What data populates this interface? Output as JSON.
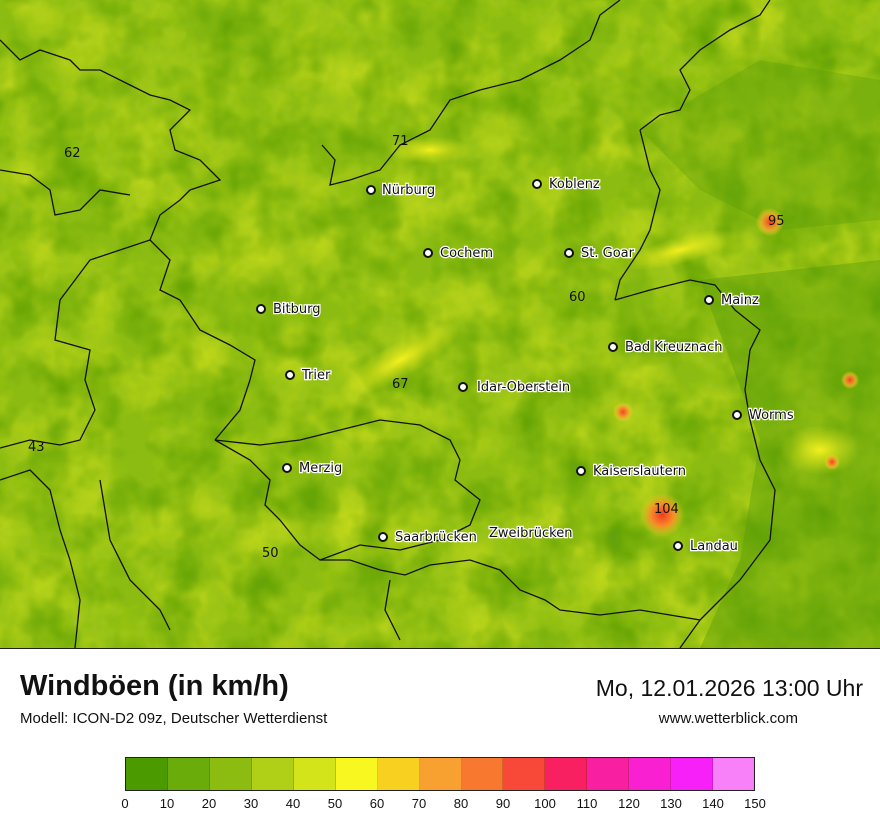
{
  "header": {
    "title": "Windböen (in km/h)",
    "model": "Modell: ICON-D2 09z, Deutscher Wetterdienst",
    "datetime": "Mo, 12.01.2026 13:00 Uhr",
    "website": "www.wetterblick.com"
  },
  "cities": [
    {
      "name": "Nürburg"
    },
    {
      "name": "Koblenz"
    },
    {
      "name": "Cochem"
    },
    {
      "name": "St. Goar"
    },
    {
      "name": "Mainz"
    },
    {
      "name": "Bitburg"
    },
    {
      "name": "Bad Kreuznach"
    },
    {
      "name": "Trier"
    },
    {
      "name": "Idar-Oberstein"
    },
    {
      "name": "Worms"
    },
    {
      "name": "Merzig"
    },
    {
      "name": "Kaiserslautern"
    },
    {
      "name": "Saarbrücken"
    },
    {
      "name": "Zweibrücken"
    },
    {
      "name": "Landau"
    }
  ],
  "values": [
    "62",
    "71",
    "95",
    "60",
    "67",
    "43",
    "104",
    "50"
  ],
  "legend": {
    "ticks": [
      "0",
      "10",
      "20",
      "30",
      "40",
      "50",
      "60",
      "70",
      "80",
      "90",
      "100",
      "110",
      "120",
      "130",
      "140",
      "150"
    ],
    "colors": [
      "#4a9a00",
      "#6aac0a",
      "#8cbc10",
      "#b0d018",
      "#d4e41a",
      "#f8f820",
      "#f8d020",
      "#f8a030",
      "#f87830",
      "#f84838",
      "#f82060",
      "#f820a0",
      "#f820d0",
      "#f820f8",
      "#f880f8"
    ]
  }
}
